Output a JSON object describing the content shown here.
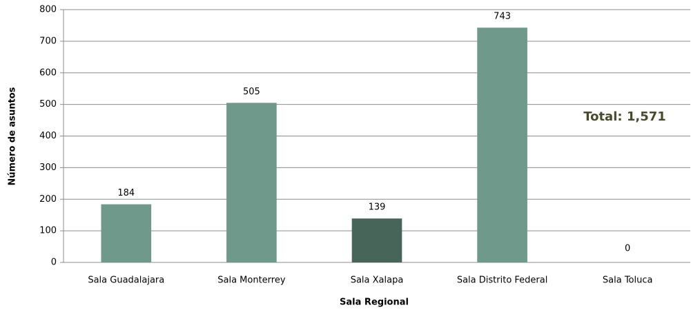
{
  "chart_data": {
    "type": "bar",
    "categories": [
      "Sala Guadalajara",
      "Sala Monterrey",
      "Sala Xalapa",
      "Sala Distrito Federal",
      "Sala Toluca"
    ],
    "values": [
      184,
      505,
      139,
      743,
      0
    ],
    "colors": [
      "#6f998b",
      "#6f998b",
      "#476659",
      "#6f998b",
      "#6f998b"
    ],
    "xlabel": "Sala Regional",
    "ylabel": "Número de asuntos",
    "annotation": "Total: 1,571",
    "ylim": [
      0,
      800
    ],
    "yticks": [
      0,
      100,
      200,
      300,
      400,
      500,
      600,
      700,
      800
    ],
    "grid": true
  }
}
